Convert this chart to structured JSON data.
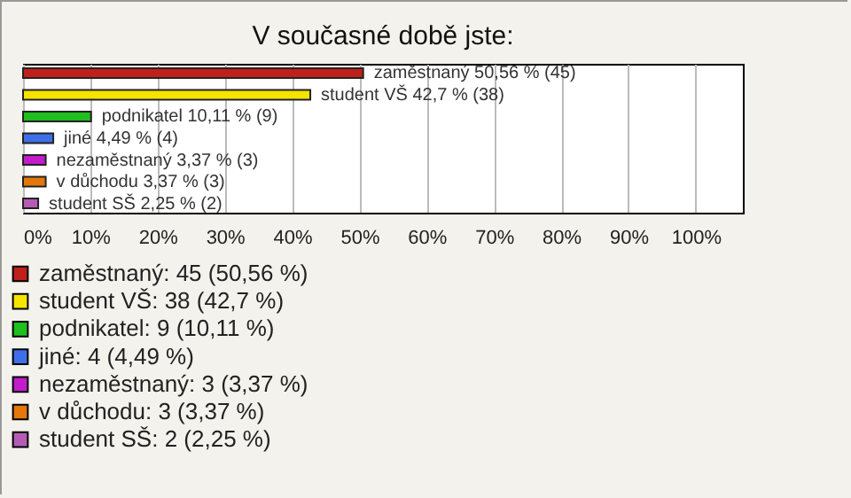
{
  "chart_data": {
    "type": "bar",
    "orientation": "horizontal",
    "stacked": true,
    "title": "V současné době jste:",
    "categories": [
      null,
      null,
      null,
      null,
      null,
      null,
      null
    ],
    "series": [
      {
        "name": "zaměstnaný: 45 (50,56 %)",
        "color": "#c0201a",
        "values": [
          50.56,
          null,
          null,
          null,
          null,
          null,
          null
        ],
        "value_labels": [
          "zaměstnaný 50,56 % (45)",
          null,
          null,
          null,
          null,
          null,
          null
        ]
      },
      {
        "name": "student VŠ: 38 (42,7 %)",
        "color": "#f5e400",
        "values": [
          null,
          42.7,
          null,
          null,
          null,
          null,
          null
        ],
        "value_labels": [
          null,
          "student VŠ 42,7 % (38)",
          null,
          null,
          null,
          null,
          null
        ]
      },
      {
        "name": "podnikatel: 9 (10,11 %)",
        "color": "#1fbf1f",
        "values": [
          null,
          null,
          10.11,
          null,
          null,
          null,
          null
        ],
        "value_labels": [
          null,
          null,
          "podnikatel 10,11 % (9)",
          null,
          null,
          null,
          null
        ]
      },
      {
        "name": "jiné: 4 (4,49 %)",
        "color": "#3f6fe8",
        "values": [
          null,
          null,
          null,
          4.49,
          null,
          null,
          null
        ],
        "value_labels": [
          null,
          null,
          null,
          "jiné 4,49 % (4)",
          null,
          null,
          null
        ]
      },
      {
        "name": "nezaměstnaný: 3 (3,37 %)",
        "color": "#c21ccb",
        "values": [
          null,
          null,
          null,
          null,
          3.37,
          null,
          null
        ],
        "value_labels": [
          null,
          null,
          null,
          null,
          "nezaměstnaný 3,37 % (3)",
          null,
          null
        ]
      },
      {
        "name": "v důchodu: 3 (3,37 %)",
        "color": "#e3780c",
        "values": [
          null,
          null,
          null,
          null,
          null,
          3.37,
          null
        ],
        "value_labels": [
          null,
          null,
          null,
          null,
          null,
          "v důchodu 3,37 % (3)",
          null
        ]
      },
      {
        "name": "student SŠ: 2 (2,25 %)",
        "color": "#b75cb5",
        "values": [
          null,
          null,
          null,
          null,
          null,
          null,
          2.25
        ],
        "value_labels": [
          null,
          null,
          null,
          null,
          null,
          null,
          "student SŠ 2,25 % (2)"
        ]
      }
    ],
    "xlim": [
      0,
      107
    ],
    "xticks": [
      {
        "value": 0,
        "label": "0%"
      },
      {
        "value": 10,
        "label": "10%"
      },
      {
        "value": 20,
        "label": "20%"
      },
      {
        "value": 30,
        "label": "30%"
      },
      {
        "value": 40,
        "label": "40%"
      },
      {
        "value": 50,
        "label": "50%"
      },
      {
        "value": 60,
        "label": "60%"
      },
      {
        "value": 70,
        "label": "70%"
      },
      {
        "value": 80,
        "label": "80%"
      },
      {
        "value": 90,
        "label": "90%"
      },
      {
        "value": 100,
        "label": "100%"
      }
    ],
    "grid": "x",
    "legend": "bottom",
    "tick_labels": "x"
  }
}
